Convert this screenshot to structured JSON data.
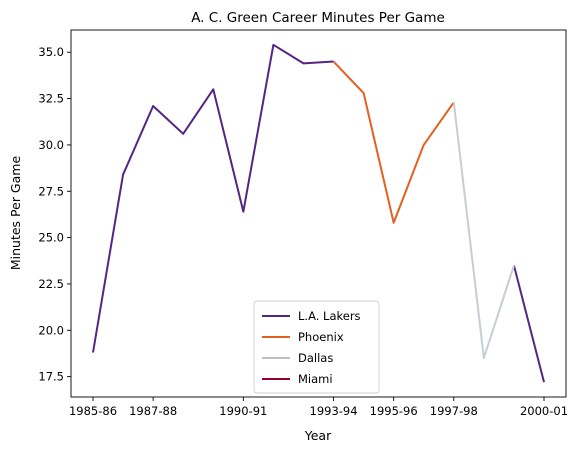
{
  "chart_data": {
    "type": "line",
    "title": "A. C. Green Career Minutes Per Game",
    "xlabel": "Year",
    "ylabel": "Minutes Per Game",
    "xlim": [
      0,
      15
    ],
    "ylim": [
      16.4,
      36.2
    ],
    "x_ticks": [
      {
        "index": 0,
        "label": "1985-86"
      },
      {
        "index": 2,
        "label": "1987-88"
      },
      {
        "index": 5,
        "label": "1990-91"
      },
      {
        "index": 8,
        "label": "1993-94"
      },
      {
        "index": 10,
        "label": "1995-96"
      },
      {
        "index": 12,
        "label": "1997-98"
      },
      {
        "index": 15,
        "label": "2000-01"
      }
    ],
    "y_ticks": [
      17.5,
      20.0,
      22.5,
      25.0,
      27.5,
      30.0,
      32.5,
      35.0
    ],
    "y_tick_labels": [
      "17.5",
      "20.0",
      "22.5",
      "25.0",
      "27.5",
      "30.0",
      "32.5",
      "35.0"
    ],
    "grid": false,
    "legend_position": "bottom-center",
    "series": [
      {
        "name": "L.A. Lakers",
        "color": "#552583",
        "points": [
          [
            0,
            18.8
          ],
          [
            1,
            28.4
          ],
          [
            2,
            32.1
          ],
          [
            3,
            30.6
          ],
          [
            4,
            33.0
          ],
          [
            5,
            26.4
          ],
          [
            6,
            35.4
          ],
          [
            7,
            34.4
          ],
          [
            8,
            34.5
          ]
        ]
      },
      {
        "name": "L.A. Lakers",
        "color": "#552583",
        "points": [
          [
            14,
            23.5
          ],
          [
            15,
            17.2
          ]
        ]
      },
      {
        "name": "Phoenix",
        "color": "#E56020",
        "points": [
          [
            8,
            34.5
          ],
          [
            9,
            32.8
          ],
          [
            10,
            25.8
          ],
          [
            11,
            30.0
          ],
          [
            12,
            32.3
          ]
        ]
      },
      {
        "name": "Dallas",
        "color": "#C4CED4",
        "points": [
          [
            12,
            32.3
          ],
          [
            13,
            18.5
          ],
          [
            14,
            23.5
          ]
        ]
      },
      {
        "name": "Miami",
        "color": "#98002E",
        "points": []
      }
    ],
    "legend": [
      {
        "label": "L.A. Lakers",
        "color": "#552583"
      },
      {
        "label": "Phoenix",
        "color": "#E56020"
      },
      {
        "label": "Dallas",
        "color": "#BEBEBE"
      },
      {
        "label": "Miami",
        "color": "#98002E"
      }
    ]
  }
}
